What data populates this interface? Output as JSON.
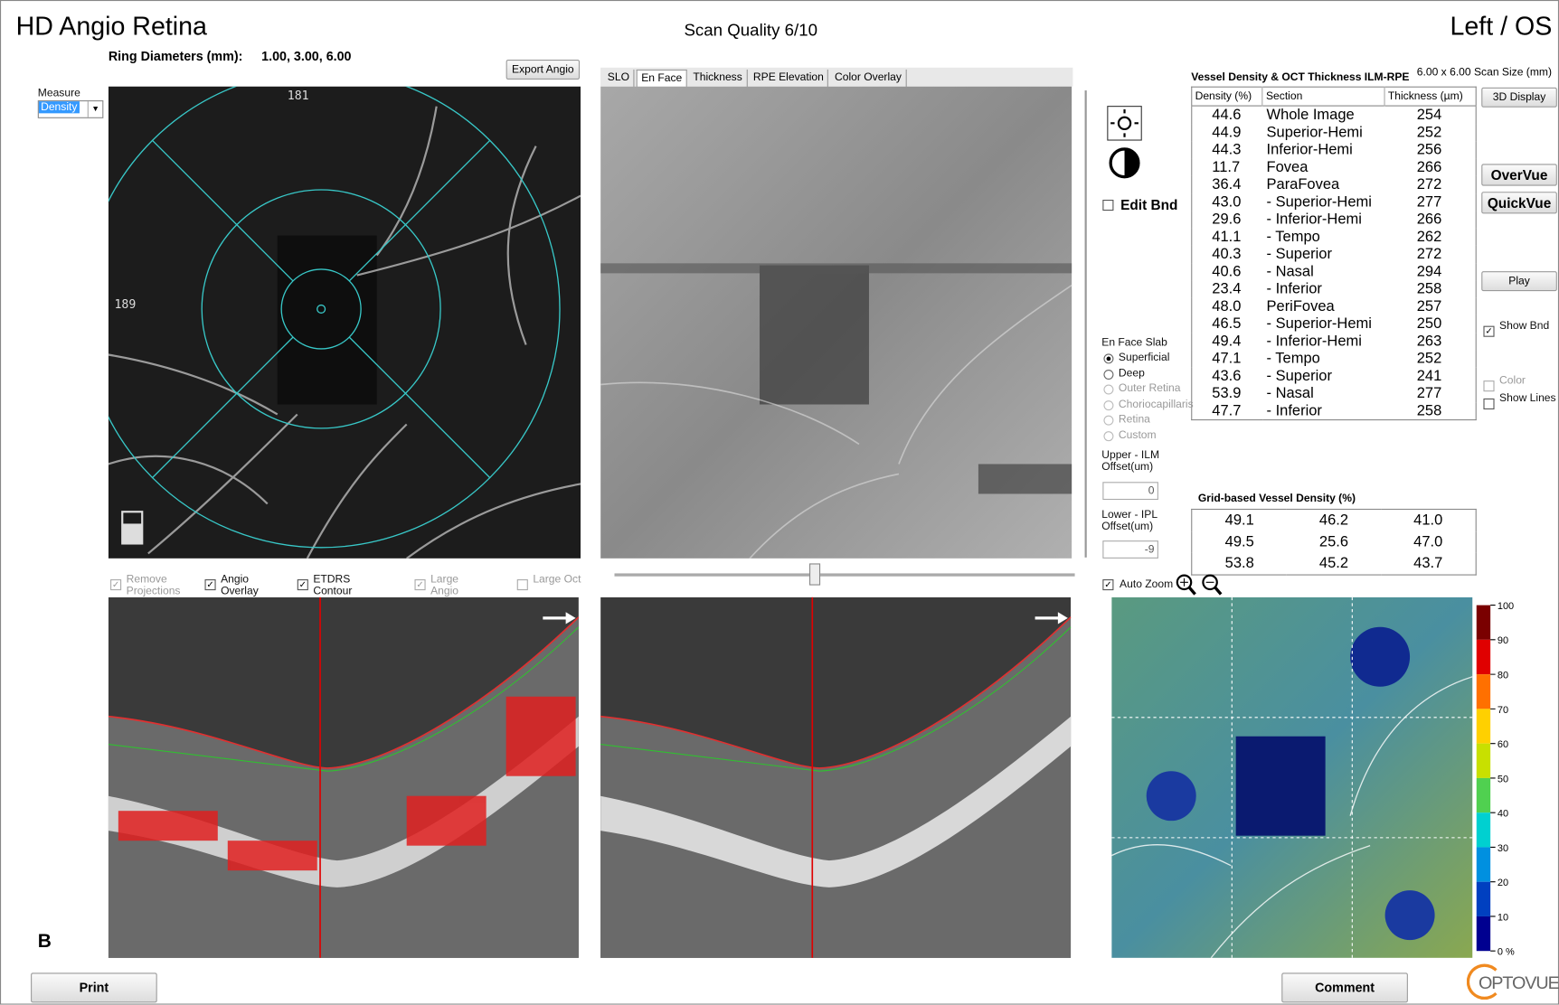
{
  "header": {
    "title": "HD Angio Retina",
    "scan_quality": "Scan Quality 6/10",
    "eye": "Left / OS",
    "ring_label": "Ring Diameters (mm):",
    "ring_values": "1.00,  3.00,  6.00"
  },
  "left_panel": {
    "measure_label": "Measure",
    "measure_value": "Density",
    "export_button": "Export Angio",
    "top_marker": "181",
    "left_marker": "189"
  },
  "tabs": [
    "SLO",
    "En Face",
    "Thickness",
    "RPE Elevation",
    "Color Overlay"
  ],
  "active_tab": "En Face",
  "scan_options": [
    {
      "label": "Remove Projections",
      "checked": true,
      "enabled": false
    },
    {
      "label": "Angio Overlay",
      "checked": true,
      "enabled": true
    },
    {
      "label": "ETDRS Contour",
      "checked": true,
      "enabled": true
    },
    {
      "label": "Large Angio",
      "checked": true,
      "enabled": false
    },
    {
      "label": "Large Oct",
      "checked": false,
      "enabled": false
    }
  ],
  "side_controls": {
    "edit_bnd": "Edit Bnd",
    "slab_title": "En Face Slab",
    "slab_options": [
      {
        "label": "Superficial",
        "selected": true,
        "enabled": true
      },
      {
        "label": "Deep",
        "selected": false,
        "enabled": true
      },
      {
        "label": "Outer Retina",
        "selected": false,
        "enabled": false
      },
      {
        "label": "Choriocapillaris",
        "selected": false,
        "enabled": false
      },
      {
        "label": "Retina",
        "selected": false,
        "enabled": false
      },
      {
        "label": "Custom",
        "selected": false,
        "enabled": false
      }
    ],
    "upper_label": "Upper - ILM Offset(um)",
    "upper_value": "0",
    "lower_label": "Lower - IPL Offset(um)",
    "lower_value": "-9",
    "auto_zoom": "Auto Zoom"
  },
  "table": {
    "title": "Vessel Density & OCT Thickness ILM-RPE",
    "scan_size": "6.00 x 6.00 Scan Size (mm)",
    "columns": [
      "Density (%)",
      "Section",
      "Thickness (µm)"
    ],
    "rows": [
      [
        "44.6",
        "Whole Image",
        "254"
      ],
      [
        "44.9",
        "Superior-Hemi",
        "252"
      ],
      [
        "44.3",
        "Inferior-Hemi",
        "256"
      ],
      [
        "11.7",
        "Fovea",
        "266"
      ],
      [
        "36.4",
        "ParaFovea",
        "272"
      ],
      [
        "43.0",
        "- Superior-Hemi",
        "277"
      ],
      [
        "29.6",
        "- Inferior-Hemi",
        "266"
      ],
      [
        "41.1",
        "- Tempo",
        "262"
      ],
      [
        "40.3",
        "- Superior",
        "272"
      ],
      [
        "40.6",
        "- Nasal",
        "294"
      ],
      [
        "23.4",
        "- Inferior",
        "258"
      ],
      [
        "48.0",
        "PeriFovea",
        "257"
      ],
      [
        "46.5",
        "- Superior-Hemi",
        "250"
      ],
      [
        "49.4",
        "- Inferior-Hemi",
        "263"
      ],
      [
        "47.1",
        "- Tempo",
        "252"
      ],
      [
        "43.6",
        "- Superior",
        "241"
      ],
      [
        "53.9",
        "- Nasal",
        "277"
      ],
      [
        "47.7",
        "- Inferior",
        "258"
      ]
    ]
  },
  "grid_table": {
    "title": "Grid-based Vessel Density (%)",
    "rows": [
      [
        "49.1",
        "46.2",
        "41.0"
      ],
      [
        "49.5",
        "25.6",
        "47.0"
      ],
      [
        "53.8",
        "45.2",
        "43.7"
      ]
    ]
  },
  "right_buttons": [
    "3D Display",
    "OverVue",
    "QuickVue",
    "Play"
  ],
  "right_checks": [
    {
      "label": "Show Bnd",
      "checked": true,
      "enabled": true
    },
    {
      "label": "Color",
      "checked": false,
      "enabled": false
    },
    {
      "label": "Show Lines",
      "checked": false,
      "enabled": true
    }
  ],
  "colorbar": {
    "labels": [
      "100",
      "90",
      "80",
      "70",
      "60",
      "50",
      "40",
      "30",
      "20",
      "10",
      "0 %"
    ],
    "colors": [
      "#7a0000",
      "#e00000",
      "#ff7000",
      "#ffd000",
      "#c8e000",
      "#50d050",
      "#00d0d0",
      "#0090e0",
      "#0040c0",
      "#000090"
    ]
  },
  "footer": {
    "panel_letter": "B",
    "print": "Print",
    "comment": "Comment",
    "logo": "OPTOVUE"
  }
}
